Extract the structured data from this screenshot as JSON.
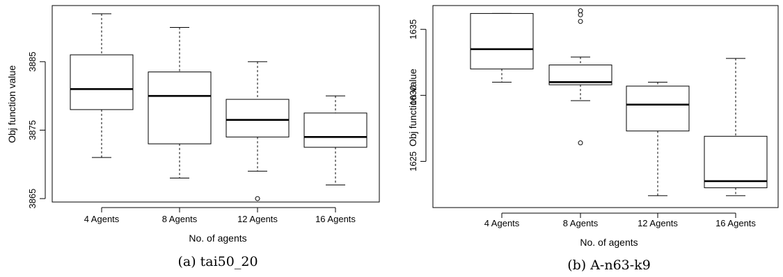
{
  "chart_data": [
    {
      "type": "boxplot",
      "caption": "(a) tai50_20",
      "xlabel": "No. of agents",
      "ylabel": "Obj function value",
      "categories": [
        "4 Agents",
        "8 Agents",
        "12 Agents",
        "16 Agents"
      ],
      "yticks": [
        3865,
        3875,
        3885
      ],
      "ylim": [
        3864.5,
        3893.2
      ],
      "boxes": [
        {
          "whisker_low": 3871,
          "q1": 3878,
          "median": 3881,
          "q3": 3886,
          "whisker_high": 3892,
          "outliers": []
        },
        {
          "whisker_low": 3868,
          "q1": 3873,
          "median": 3880,
          "q3": 3883.5,
          "whisker_high": 3890,
          "outliers": []
        },
        {
          "whisker_low": 3869,
          "q1": 3874,
          "median": 3876.5,
          "q3": 3879.5,
          "whisker_high": 3885,
          "outliers": [
            3865
          ]
        },
        {
          "whisker_low": 3867,
          "q1": 3872.5,
          "median": 3874,
          "q3": 3877.5,
          "whisker_high": 3880,
          "outliers": []
        }
      ]
    },
    {
      "type": "boxplot",
      "caption": "(b) A-n63-k9",
      "xlabel": "No. of agents",
      "ylabel": "Obj function value",
      "categories": [
        "4 Agents",
        "8 Agents",
        "12 Agents",
        "16 Agents"
      ],
      "yticks": [
        1625,
        1630,
        1635
      ],
      "ylim": [
        1621.5,
        1636.8
      ],
      "boxes": [
        {
          "whisker_low": 1631,
          "q1": 1632,
          "median": 1633.5,
          "q3": 1636.2,
          "whisker_high": 1636.2,
          "outliers": []
        },
        {
          "whisker_low": 1629.6,
          "q1": 1630.8,
          "median": 1631,
          "q3": 1632.3,
          "whisker_high": 1632.9,
          "outliers": [
            1626.4,
            1635.6,
            1636.1,
            1636.4
          ]
        },
        {
          "whisker_low": 1622.4,
          "q1": 1627.3,
          "median": 1629.3,
          "q3": 1630.7,
          "whisker_high": 1631,
          "outliers": []
        },
        {
          "whisker_low": 1622.4,
          "q1": 1623.0,
          "median": 1623.5,
          "q3": 1626.9,
          "whisker_high": 1632.8,
          "outliers": []
        }
      ]
    }
  ]
}
